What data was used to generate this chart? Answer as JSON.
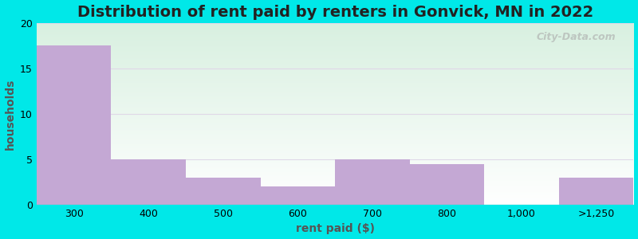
{
  "title": "Distribution of rent paid by renters in Gonvick, MN in 2022",
  "xlabel": "rent paid ($)",
  "ylabel": "households",
  "tick_labels": [
    "300",
    "400",
    "500",
    "600",
    "700",
    "800",
    "1,000",
    ">1,250"
  ],
  "bar_lefts": [
    0,
    1,
    2,
    3,
    4,
    5,
    6,
    7
  ],
  "bar_widths": [
    1,
    1,
    1,
    1,
    1,
    1,
    1,
    1
  ],
  "values": [
    17.5,
    5,
    3,
    2,
    5,
    4.5,
    0,
    3
  ],
  "bar_color": "#c4a8d4",
  "ylim": [
    0,
    20
  ],
  "yticks": [
    0,
    5,
    10,
    15,
    20
  ],
  "bg_outer": "#00e8e8",
  "bg_inner_left": "#dff5e3",
  "bg_inner_right": "#f5fbf8",
  "bg_inner_top": "#e8f8ee",
  "bg_inner_bottom": "#ffffff",
  "grid_color": "#e0d8e8",
  "title_fontsize": 14,
  "axis_label_fontsize": 10,
  "tick_fontsize": 9,
  "watermark": "City-Data.com"
}
